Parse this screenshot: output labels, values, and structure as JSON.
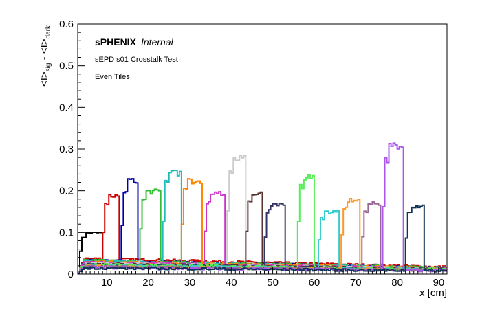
{
  "chart_data": {
    "type": "line",
    "title": "",
    "xlabel": "x [cm]",
    "ylabel_parts": {
      "i1": "<I>",
      "sub1": "sig",
      "minus": " - ",
      "i2": "<I>",
      "sub2": "dark"
    },
    "xlim": [
      3,
      92
    ],
    "ylim": [
      0,
      0.6
    ],
    "x_ticks": [
      10,
      20,
      30,
      40,
      50,
      60,
      70,
      80,
      90
    ],
    "y_ticks": [
      0,
      0.1,
      0.2,
      0.3,
      0.4,
      0.5,
      0.6
    ],
    "x_tick_labels": [
      "10",
      "20",
      "30",
      "40",
      "50",
      "60",
      "70",
      "80",
      "90"
    ],
    "y_tick_labels": [
      "0",
      "0.1",
      "0.2",
      "0.3",
      "0.4",
      "0.5",
      "0.6"
    ],
    "grid": false,
    "legend": "none",
    "annotations": {
      "collab": "sPHENIX",
      "status": "Internal",
      "line2": "sEPD s01 Crosstalk Test",
      "line3": "Even Tiles"
    },
    "series": [
      {
        "color": "#000000",
        "peak": [
          3.5,
          9,
          0.1
        ],
        "base": 0.02
      },
      {
        "color": "#cc0000",
        "peak": [
          9,
          13,
          0.19
        ],
        "base": 0.035
      },
      {
        "color": "#0000aa",
        "peak": [
          13.5,
          17.5,
          0.225
        ],
        "base": 0.03
      },
      {
        "color": "#33bb33",
        "peak": [
          18,
          23,
          0.2
        ],
        "base": 0.03
      },
      {
        "color": "#22bbbb",
        "peak": [
          23.5,
          28,
          0.245
        ],
        "base": 0.028
      },
      {
        "color": "#ff8800",
        "peak": [
          28,
          33,
          0.225
        ],
        "base": 0.027
      },
      {
        "color": "#cc33cc",
        "peak": [
          33.5,
          38.5,
          0.195
        ],
        "base": 0.025
      },
      {
        "color": "#cccccc",
        "peak": [
          39,
          43.5,
          0.28
        ],
        "base": 0.023
      },
      {
        "color": "#553333",
        "peak": [
          43.5,
          47.5,
          0.195
        ],
        "base": 0.022
      },
      {
        "color": "#333366",
        "peak": [
          48,
          53,
          0.17
        ],
        "base": 0.02
      },
      {
        "color": "#55ee55",
        "peak": [
          56,
          60,
          0.235
        ],
        "base": 0.02
      },
      {
        "color": "#33cccc",
        "peak": [
          61,
          66,
          0.15
        ],
        "base": 0.018
      },
      {
        "color": "#ff9922",
        "peak": [
          66.5,
          71,
          0.18
        ],
        "base": 0.016
      },
      {
        "color": "#996699",
        "peak": [
          71.5,
          76,
          0.17
        ],
        "base": 0.015
      },
      {
        "color": "#aa55ee",
        "peak": [
          76.5,
          81.5,
          0.31
        ],
        "base": 0.013
      },
      {
        "color": "#113355",
        "peak": [
          82,
          86.5,
          0.165
        ],
        "base": 0.012
      }
    ]
  }
}
